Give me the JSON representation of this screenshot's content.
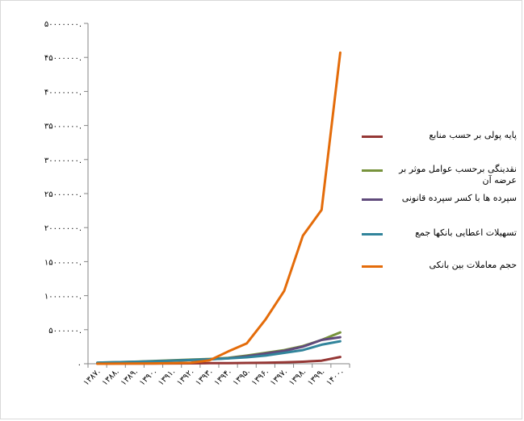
{
  "chart_data": {
    "type": "line",
    "title": "",
    "xlabel": "",
    "ylabel": "",
    "ylim": [
      0,
      50000000
    ],
    "y_ticks": [
      0,
      5000000,
      10000000,
      15000000,
      20000000,
      25000000,
      30000000,
      35000000,
      40000000,
      45000000,
      50000000
    ],
    "y_tick_labels": [
      "۰",
      "۵۰۰۰۰۰۰.",
      "۱۰۰۰۰۰۰۰.",
      "۱۵۰۰۰۰۰۰.",
      "۲۰۰۰۰۰۰۰.",
      "۲۵۰۰۰۰۰۰.",
      "۳۰۰۰۰۰۰۰.",
      "۳۵۰۰۰۰۰۰.",
      "۴۰۰۰۰۰۰۰.",
      "۴۵۰۰۰۰۰۰.",
      "۵۰۰۰۰۰۰۰."
    ],
    "categories": [
      "۱۳۸۷",
      "۱۳۸۸",
      "۱۳۸۹",
      "۱۳۹۰",
      "۱۳۹۱",
      "۱۳۹۲",
      "۱۳۹۳",
      "۱۳۹۴",
      "۱۳۹۵",
      "۱۳۹۶",
      "۱۳۹۷",
      "۱۳۹۸",
      "۱۳۹۹",
      "۱۴۰۰"
    ],
    "grid": false,
    "legend_position": "right",
    "series": [
      {
        "name": "پایه پولی بر حسب منابع",
        "color": "#953735",
        "values": [
          0,
          20000,
          30000,
          40000,
          50000,
          60000,
          80000,
          100000,
          120000,
          150000,
          200000,
          300000,
          450000,
          1000000
        ]
      },
      {
        "name": "نقدینگی برحسب عوامل موثر بر عرضه آن",
        "color": "#77933c",
        "values": [
          150000,
          230000,
          300000,
          400000,
          500000,
          600000,
          700000,
          850000,
          1200000,
          1600000,
          2000000,
          2600000,
          3500000,
          4600000
        ]
      },
      {
        "name": "سپرده ها با کسر سپرده قانونی",
        "color": "#604a7b",
        "values": [
          120000,
          200000,
          270000,
          350000,
          450000,
          550000,
          650000,
          800000,
          1100000,
          1500000,
          1900000,
          2500000,
          3500000,
          3900000
        ]
      },
      {
        "name": "تسهیلات اعطایی بانکها جمع",
        "color": "#31849b",
        "values": [
          150000,
          220000,
          280000,
          350000,
          450000,
          550000,
          650000,
          780000,
          950000,
          1200000,
          1600000,
          2000000,
          2800000,
          3300000
        ]
      },
      {
        "name": "حجم معاملات بین بانکی",
        "color": "#e46c0a",
        "values": [
          0,
          10000,
          20000,
          50000,
          100000,
          150000,
          500000,
          1800000,
          3000000,
          6500000,
          10700000,
          18800000,
          22600000,
          45700000
        ]
      }
    ]
  }
}
